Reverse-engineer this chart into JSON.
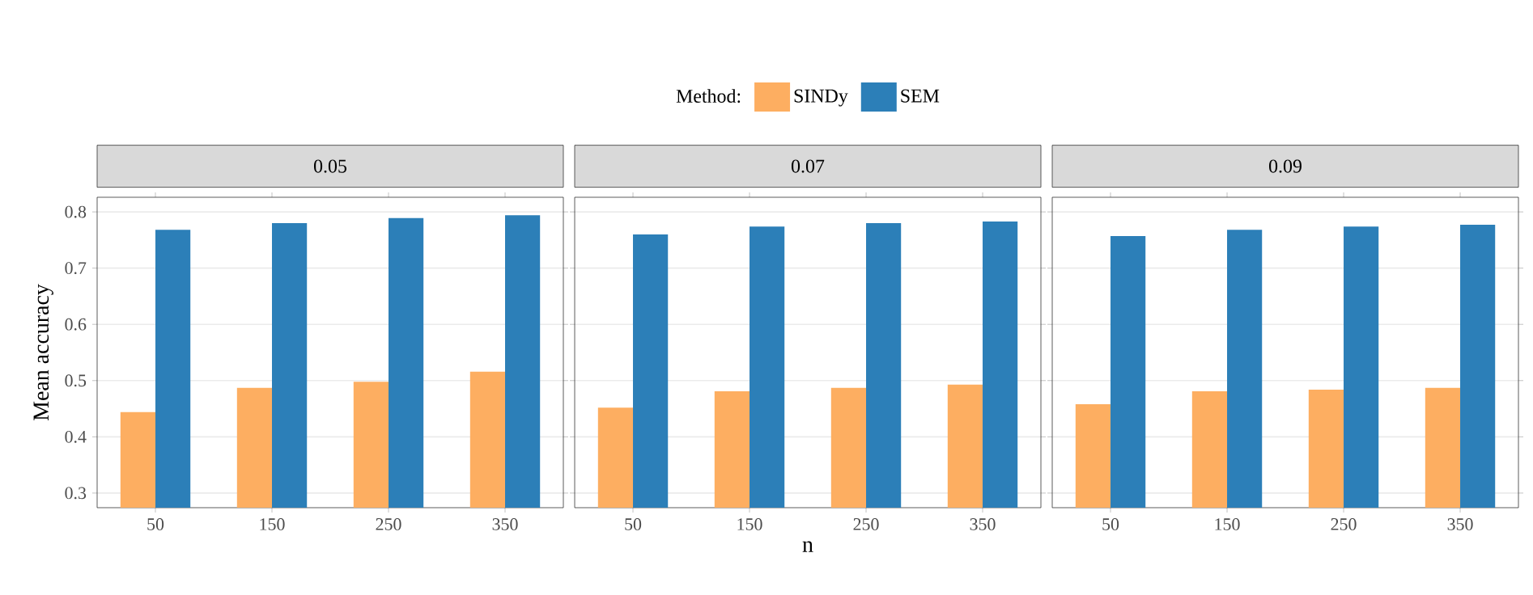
{
  "chart_data": [
    {
      "type": "bar",
      "title": "0.05",
      "ylabel": "Mean accuracy",
      "legend_title": "Method:",
      "legend": "top",
      "grid": "y",
      "categories": [
        "50",
        "150",
        "250",
        "350"
      ],
      "ylim": [
        0.274,
        0.826
      ],
      "yticks": [
        0.3,
        0.4,
        0.5,
        0.6,
        0.7,
        0.8
      ],
      "series": [
        {
          "name": "SINDy",
          "color": "#fdae61",
          "values": [
            0.444,
            0.487,
            0.498,
            0.516
          ]
        },
        {
          "name": "SEM",
          "color": "#2c7fb8",
          "values": [
            0.768,
            0.78,
            0.789,
            0.794
          ]
        }
      ]
    },
    {
      "type": "bar",
      "title": "0.07",
      "xlabel": "n",
      "grid": "y",
      "tick_labels": "x",
      "categories": [
        "50",
        "150",
        "250",
        "350"
      ],
      "ylim": [
        0.274,
        0.826
      ],
      "series": [
        {
          "color": "#fdae61",
          "values": [
            0.452,
            0.481,
            0.487,
            0.493
          ]
        },
        {
          "color": "#2c7fb8",
          "values": [
            0.76,
            0.774,
            0.78,
            0.783
          ]
        }
      ]
    },
    {
      "type": "bar",
      "title": "0.09",
      "grid": "y",
      "tick_labels": "x",
      "categories": [
        "50",
        "150",
        "250",
        "350"
      ],
      "ylim": [
        0.274,
        0.826
      ],
      "series": [
        {
          "color": "#fdae61",
          "values": [
            0.458,
            0.481,
            0.484,
            0.487
          ]
        },
        {
          "color": "#2c7fb8",
          "values": [
            0.757,
            0.768,
            0.774,
            0.777
          ]
        }
      ]
    }
  ]
}
